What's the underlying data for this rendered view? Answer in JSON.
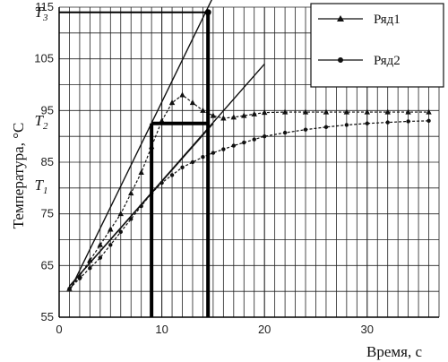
{
  "chart_data": {
    "type": "line",
    "xlabel": "Время,  с",
    "ylabel": "Температура,  °C",
    "xlim": [
      0,
      37
    ],
    "ylim": [
      55,
      115
    ],
    "x_ticks": [
      0,
      10,
      20,
      30
    ],
    "y_ticks": [
      55,
      65,
      75,
      85,
      95,
      105,
      115
    ],
    "grid": true,
    "legend_position": "top-right",
    "series": [
      {
        "name": "Ряд1",
        "marker": "triangle",
        "x": [
          1,
          2,
          3,
          4,
          5,
          6,
          7,
          8,
          9,
          10,
          11,
          12,
          13,
          14,
          15,
          16,
          17,
          18,
          19,
          20,
          22,
          24,
          26,
          28,
          30,
          32,
          34,
          36
        ],
        "y": [
          60.5,
          63,
          66,
          69,
          72,
          75,
          79,
          83,
          88,
          93,
          96.5,
          98,
          96.5,
          95,
          94,
          93.5,
          93.7,
          94,
          94.3,
          94.6,
          94.7,
          94.7,
          94.7,
          94.7,
          94.7,
          94.7,
          94.7,
          94.7
        ]
      },
      {
        "name": "Ряд2",
        "marker": "circle",
        "x": [
          1,
          2,
          3,
          4,
          5,
          6,
          7,
          8,
          9,
          10,
          11,
          12,
          13,
          14,
          15,
          16,
          17,
          18,
          19,
          20,
          22,
          24,
          26,
          28,
          30,
          32,
          34,
          36
        ],
        "y": [
          60.5,
          62.5,
          64.5,
          66.5,
          69,
          71.5,
          74,
          76.5,
          79,
          81,
          82.5,
          84,
          85,
          86,
          86.8,
          87.5,
          88.2,
          88.8,
          89.4,
          90,
          90.7,
          91.3,
          91.8,
          92.2,
          92.5,
          92.7,
          92.9,
          93
        ]
      }
    ],
    "tangent_lines": [
      {
        "x": [
          1,
          15
        ],
        "y": [
          60,
          117
        ]
      },
      {
        "x": [
          1,
          20
        ],
        "y": [
          61,
          104
        ]
      },
      {
        "x": [
          1,
          15
        ],
        "y": [
          61,
          92.5
        ]
      }
    ],
    "construction_lines": [
      {
        "x": [
          9,
          9
        ],
        "y": [
          55,
          92.5
        ]
      },
      {
        "x": [
          14.5,
          14.5
        ],
        "y": [
          55,
          114
        ]
      },
      {
        "x": [
          9,
          14.5
        ],
        "y": [
          92.5,
          92.5
        ]
      },
      {
        "x": [
          0,
          14.5
        ],
        "y": [
          114,
          114
        ]
      }
    ],
    "annotations": [
      {
        "text": "T3",
        "y": 114
      },
      {
        "text": "T2",
        "y": 93
      },
      {
        "text": "T1",
        "y": 80.5
      }
    ]
  },
  "colors": {
    "grid": "#222222",
    "series": "#111111",
    "construction": "#000000"
  }
}
